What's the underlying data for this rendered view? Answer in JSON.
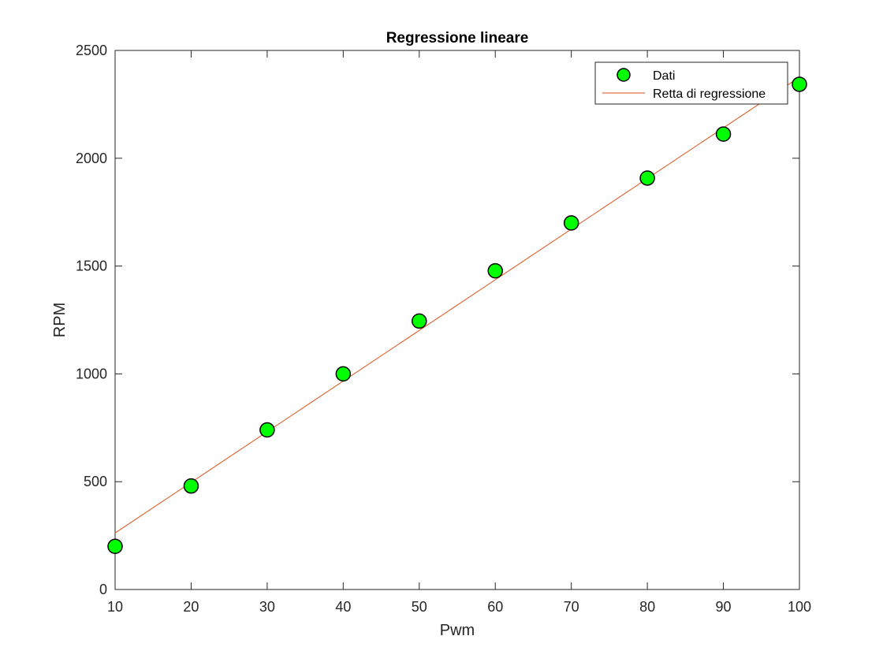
{
  "chart_data": {
    "type": "scatter",
    "title": "Regressione lineare",
    "xlabel": "Pwm",
    "ylabel": "RPM",
    "xlim": [
      10,
      100
    ],
    "ylim": [
      0,
      2500
    ],
    "xticks": [
      10,
      20,
      30,
      40,
      50,
      60,
      70,
      80,
      90,
      100
    ],
    "yticks": [
      0,
      500,
      1000,
      1500,
      2000,
      2500
    ],
    "grid": false,
    "legend_position": "top-right",
    "series": [
      {
        "name": "Dati",
        "kind": "markers",
        "marker": "circle",
        "color": "#00ff00",
        "edge_color": "#000000",
        "x": [
          10,
          20,
          30,
          40,
          50,
          60,
          70,
          80,
          90,
          100
        ],
        "y": [
          200,
          480,
          740,
          1000,
          1245,
          1478,
          1700,
          1908,
          2112,
          2343
        ]
      },
      {
        "name": "Retta di regressione",
        "kind": "line",
        "color": "#d95319",
        "x": [
          10,
          100
        ],
        "y": [
          262,
          2376
        ]
      }
    ]
  }
}
